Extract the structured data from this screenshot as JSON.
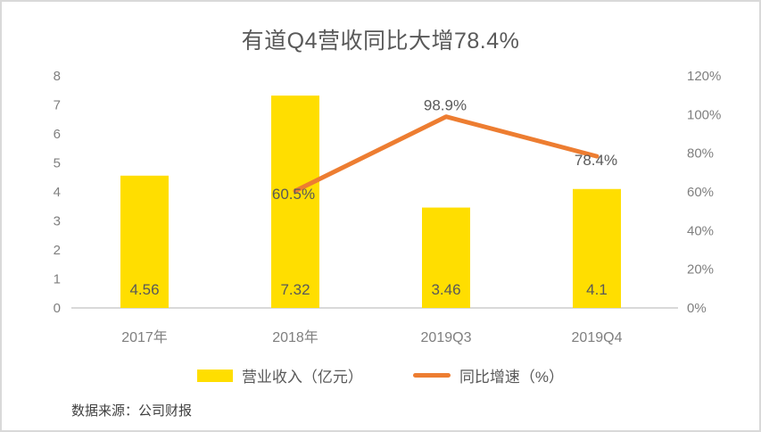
{
  "title": "有道Q4营收同比大增78.4%",
  "source": "数据来源：公司财报",
  "colors": {
    "bar": "#FFDE00",
    "line": "#ED7D31",
    "title_text": "#595959",
    "axis_text": "#7F7F7F",
    "data_label_text": "#595959",
    "baseline": "#D9D9D9"
  },
  "legend": [
    {
      "label": "营业收入（亿元）",
      "type": "bar",
      "color": "#FFDE00"
    },
    {
      "label": "同比增速（%）",
      "type": "line",
      "color": "#ED7D31"
    }
  ],
  "chart_data": {
    "type": "combo-bar-line",
    "title": "有道Q4营收同比大增78.4%",
    "categories": [
      "2017年",
      "2018年",
      "2019Q3",
      "2019Q4"
    ],
    "series": [
      {
        "name": "营业收入（亿元）",
        "type": "bar",
        "axis": "left",
        "values": [
          4.56,
          7.32,
          3.46,
          4.1
        ],
        "labels": [
          "4.56",
          "7.32",
          "3.46",
          "4.1"
        ]
      },
      {
        "name": "同比增速（%）",
        "type": "line",
        "axis": "right",
        "values": [
          null,
          60.5,
          98.9,
          78.4
        ],
        "labels": [
          null,
          "60.5%",
          "98.9%",
          "78.4%"
        ]
      }
    ],
    "left_axis": {
      "min": 0,
      "max": 8,
      "ticks": [
        "8",
        "7",
        "6",
        "5",
        "4",
        "3",
        "2",
        "1",
        "0"
      ]
    },
    "right_axis": {
      "min": 0,
      "max": 120,
      "ticks": [
        "120%",
        "100%",
        "80%",
        "60%",
        "40%",
        "20%",
        "0%"
      ]
    },
    "grid": "off",
    "legend_position": "bottom"
  }
}
